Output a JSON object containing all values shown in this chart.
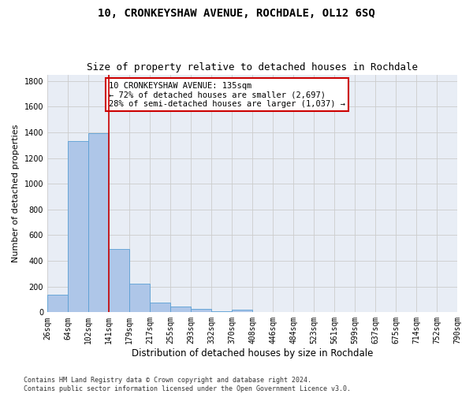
{
  "title": "10, CRONKEYSHAW AVENUE, ROCHDALE, OL12 6SQ",
  "subtitle": "Size of property relative to detached houses in Rochdale",
  "xlabel": "Distribution of detached houses by size in Rochdale",
  "ylabel": "Number of detached properties",
  "bar_values": [
    135,
    1335,
    1395,
    495,
    225,
    75,
    45,
    25,
    10,
    20,
    0,
    0,
    0,
    0,
    0,
    0,
    0,
    0,
    0,
    0
  ],
  "bin_labels": [
    "26sqm",
    "64sqm",
    "102sqm",
    "141sqm",
    "179sqm",
    "217sqm",
    "255sqm",
    "293sqm",
    "332sqm",
    "370sqm",
    "408sqm",
    "446sqm",
    "484sqm",
    "523sqm",
    "561sqm",
    "599sqm",
    "637sqm",
    "675sqm",
    "714sqm",
    "752sqm",
    "790sqm"
  ],
  "bar_color": "#aec6e8",
  "bar_edge_color": "#5a9fd4",
  "vline_color": "#cc0000",
  "annotation_text": "10 CRONKEYSHAW AVENUE: 135sqm\n← 72% of detached houses are smaller (2,697)\n28% of semi-detached houses are larger (1,037) →",
  "annotation_box_color": "#ffffff",
  "annotation_box_edge_color": "#cc0000",
  "ylim": [
    0,
    1850
  ],
  "yticks": [
    0,
    200,
    400,
    600,
    800,
    1000,
    1200,
    1400,
    1600,
    1800
  ],
  "grid_color": "#cccccc",
  "bg_color": "#e8edf5",
  "footer_text": "Contains HM Land Registry data © Crown copyright and database right 2024.\nContains public sector information licensed under the Open Government Licence v3.0.",
  "title_fontsize": 10,
  "subtitle_fontsize": 9,
  "xlabel_fontsize": 8.5,
  "ylabel_fontsize": 8,
  "tick_fontsize": 7,
  "annotation_fontsize": 7.5,
  "footer_fontsize": 6
}
